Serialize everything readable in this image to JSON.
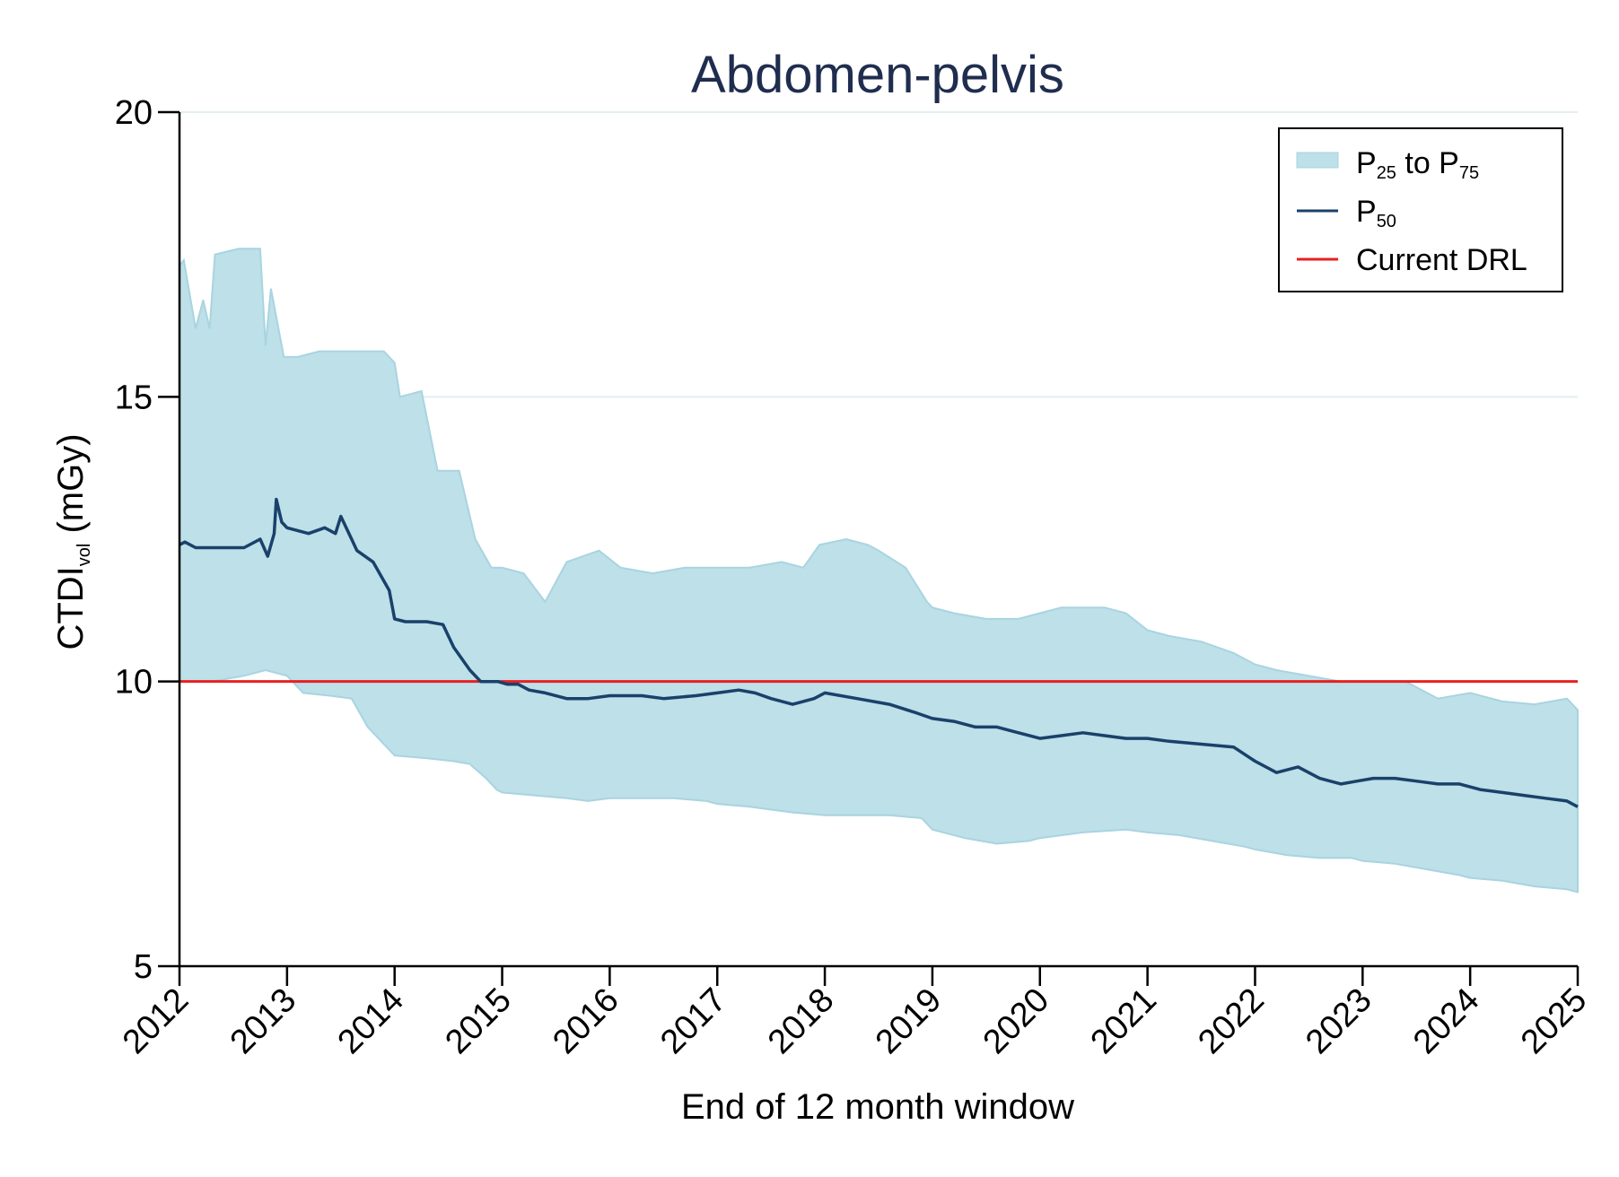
{
  "chart_data": {
    "type": "area",
    "title": "Abdomen-pelvis",
    "xlabel": "End of 12 month window",
    "ylabel": {
      "main": "CTDI",
      "sub": "vol",
      "unit": " (mGy)"
    },
    "xlim": [
      2012,
      2025
    ],
    "ylim": [
      5,
      20
    ],
    "x_ticks": [
      "2012",
      "2013",
      "2014",
      "2015",
      "2016",
      "2017",
      "2018",
      "2019",
      "2020",
      "2021",
      "2022",
      "2023",
      "2024",
      "2025"
    ],
    "y_ticks": [
      "5",
      "10",
      "15",
      "20"
    ],
    "grid": "horizontal",
    "legend_position": "top-right",
    "legend": [
      {
        "key": "band",
        "main": "P",
        "sub1": "25",
        "mid": " to P",
        "sub2": "75"
      },
      {
        "key": "p50",
        "main": "P",
        "sub1": "50",
        "mid": "",
        "sub2": ""
      },
      {
        "key": "drl",
        "main": "Current DRL",
        "sub1": "",
        "mid": "",
        "sub2": ""
      }
    ],
    "colors": {
      "band": "#bde0e9",
      "band_edge": "#a9d4e0",
      "p50": "#1a4169",
      "drl": "#e8201f",
      "grid": "#e3eef2"
    },
    "drl_value": 10,
    "series": [
      {
        "name": "P75",
        "x": [
          2012.0,
          2012.04,
          2012.15,
          2012.22,
          2012.28,
          2012.33,
          2012.55,
          2012.75,
          2012.8,
          2012.85,
          2012.97,
          2013.1,
          2013.3,
          2013.6,
          2013.9,
          2014.0,
          2014.05,
          2014.25,
          2014.4,
          2014.6,
          2014.75,
          2014.9,
          2015.0,
          2015.2,
          2015.4,
          2015.6,
          2015.9,
          2016.1,
          2016.4,
          2016.7,
          2017.0,
          2017.3,
          2017.6,
          2017.8,
          2017.95,
          2018.2,
          2018.4,
          2018.5,
          2018.75,
          2018.95,
          2019.0,
          2019.2,
          2019.5,
          2019.8,
          2020.0,
          2020.2,
          2020.4,
          2020.6,
          2020.8,
          2021.0,
          2021.2,
          2021.5,
          2021.8,
          2022.0,
          2022.2,
          2022.5,
          2022.8,
          2023.0,
          2023.4,
          2023.5,
          2023.7,
          2024.0,
          2024.3,
          2024.6,
          2024.9,
          2025.0
        ],
        "y": [
          17.3,
          17.4,
          16.2,
          16.7,
          16.2,
          17.5,
          17.6,
          17.6,
          15.9,
          16.9,
          15.7,
          15.7,
          15.8,
          15.8,
          15.8,
          15.6,
          15.0,
          15.1,
          13.7,
          13.7,
          12.5,
          12.0,
          12.0,
          11.9,
          11.4,
          12.1,
          12.3,
          12.0,
          11.9,
          12.0,
          12.0,
          12.0,
          12.1,
          12.0,
          12.4,
          12.5,
          12.4,
          12.3,
          12.0,
          11.4,
          11.3,
          11.2,
          11.1,
          11.1,
          11.2,
          11.3,
          11.3,
          11.3,
          11.2,
          10.9,
          10.8,
          10.7,
          10.5,
          10.3,
          10.2,
          10.1,
          10.0,
          10.0,
          10.0,
          9.9,
          9.7,
          9.8,
          9.65,
          9.6,
          9.7,
          9.5
        ]
      },
      {
        "name": "P50",
        "x": [
          2012.0,
          2012.05,
          2012.15,
          2012.4,
          2012.6,
          2012.75,
          2012.82,
          2012.88,
          2012.9,
          2012.95,
          2013.0,
          2013.2,
          2013.35,
          2013.45,
          2013.5,
          2013.6,
          2013.65,
          2013.8,
          2013.95,
          2014.0,
          2014.1,
          2014.3,
          2014.45,
          2014.55,
          2014.7,
          2014.8,
          2014.9,
          2014.96,
          2015.05,
          2015.15,
          2015.25,
          2015.4,
          2015.6,
          2015.8,
          2016.0,
          2016.3,
          2016.5,
          2016.8,
          2017.0,
          2017.2,
          2017.35,
          2017.5,
          2017.7,
          2017.9,
          2018.0,
          2018.3,
          2018.6,
          2018.85,
          2019.0,
          2019.2,
          2019.4,
          2019.6,
          2019.8,
          2020.0,
          2020.2,
          2020.4,
          2020.6,
          2020.8,
          2021.0,
          2021.2,
          2021.5,
          2021.8,
          2022.0,
          2022.2,
          2022.4,
          2022.6,
          2022.8,
          2022.95,
          2023.1,
          2023.3,
          2023.5,
          2023.7,
          2023.9,
          2024.1,
          2024.3,
          2024.5,
          2024.7,
          2024.9,
          2025.0
        ],
        "y": [
          12.4,
          12.45,
          12.35,
          12.35,
          12.35,
          12.5,
          12.2,
          12.6,
          13.2,
          12.8,
          12.7,
          12.6,
          12.7,
          12.6,
          12.9,
          12.5,
          12.3,
          12.1,
          11.6,
          11.1,
          11.05,
          11.05,
          11.0,
          10.6,
          10.2,
          10.0,
          10.0,
          10.0,
          9.95,
          9.95,
          9.85,
          9.8,
          9.7,
          9.7,
          9.75,
          9.75,
          9.7,
          9.75,
          9.8,
          9.85,
          9.8,
          9.7,
          9.6,
          9.7,
          9.8,
          9.7,
          9.6,
          9.45,
          9.35,
          9.3,
          9.2,
          9.2,
          9.1,
          9.0,
          9.05,
          9.1,
          9.05,
          9.0,
          9.0,
          8.95,
          8.9,
          8.85,
          8.6,
          8.4,
          8.5,
          8.3,
          8.2,
          8.25,
          8.3,
          8.3,
          8.25,
          8.2,
          8.2,
          8.1,
          8.05,
          8.0,
          7.95,
          7.9,
          7.8
        ]
      },
      {
        "name": "P25",
        "x": [
          2012.0,
          2012.3,
          2012.6,
          2012.8,
          2013.0,
          2013.15,
          2013.4,
          2013.6,
          2013.75,
          2013.9,
          2014.0,
          2014.3,
          2014.55,
          2014.7,
          2014.85,
          2014.95,
          2015.0,
          2015.3,
          2015.6,
          2015.8,
          2016.0,
          2016.3,
          2016.6,
          2016.9,
          2017.0,
          2017.3,
          2017.5,
          2017.7,
          2018.0,
          2018.3,
          2018.6,
          2018.9,
          2019.0,
          2019.3,
          2019.6,
          2019.9,
          2020.0,
          2020.4,
          2020.8,
          2021.0,
          2021.3,
          2021.6,
          2021.9,
          2022.0,
          2022.3,
          2022.6,
          2022.9,
          2023.0,
          2023.3,
          2023.6,
          2023.9,
          2024.0,
          2024.3,
          2024.6,
          2024.9,
          2025.0
        ],
        "y": [
          10.0,
          10.0,
          10.1,
          10.2,
          10.1,
          9.8,
          9.75,
          9.7,
          9.2,
          8.9,
          8.7,
          8.65,
          8.6,
          8.55,
          8.3,
          8.1,
          8.05,
          8.0,
          7.95,
          7.9,
          7.95,
          7.95,
          7.95,
          7.9,
          7.85,
          7.8,
          7.75,
          7.7,
          7.65,
          7.65,
          7.65,
          7.6,
          7.4,
          7.25,
          7.15,
          7.2,
          7.25,
          7.35,
          7.4,
          7.35,
          7.3,
          7.2,
          7.1,
          7.05,
          6.95,
          6.9,
          6.9,
          6.85,
          6.8,
          6.7,
          6.6,
          6.55,
          6.5,
          6.4,
          6.35,
          6.3
        ]
      }
    ]
  }
}
